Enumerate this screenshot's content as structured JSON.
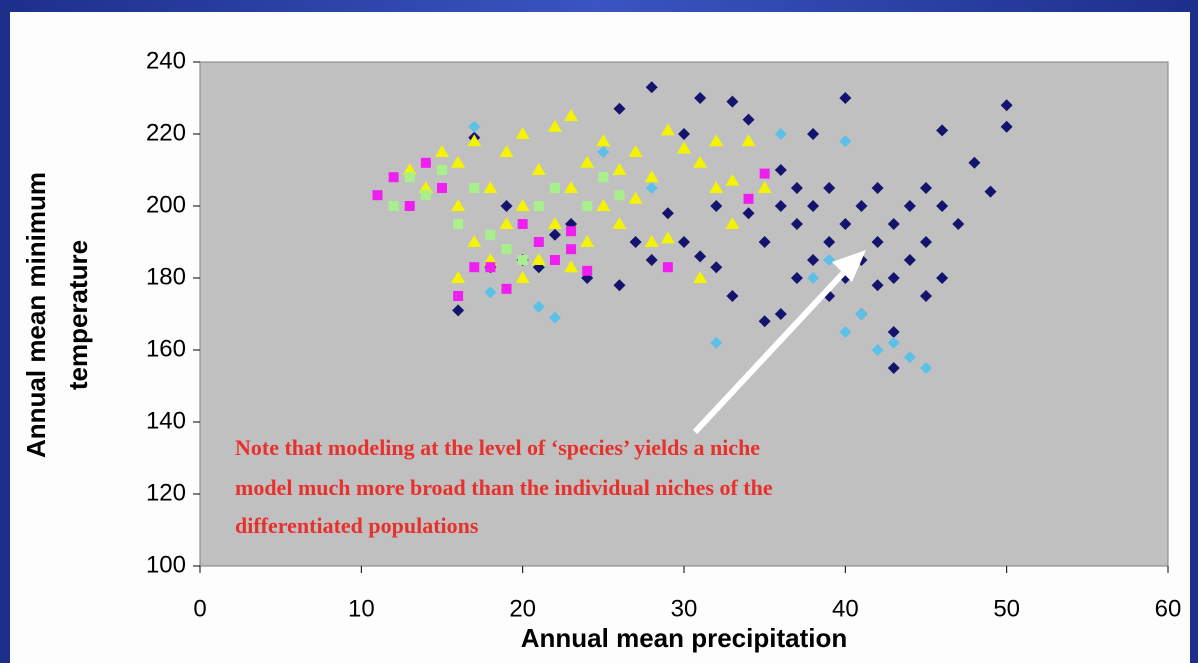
{
  "chart_data": {
    "type": "scatter",
    "x_label": "Annual mean precipitation",
    "y_label": [
      "Annual mean minimum",
      "temperature"
    ],
    "annotation": [
      "Note that modeling at the level of ‘species’ yields a niche",
      "model much more broad than the individual niches of the",
      "differentiated populations"
    ],
    "xlim": [
      0,
      60
    ],
    "xticks": [
      0,
      10,
      20,
      30,
      40,
      50,
      60
    ],
    "ylim": [
      100,
      240
    ],
    "yticks": [
      100,
      120,
      140,
      160,
      180,
      200,
      220,
      240
    ],
    "series": [
      {
        "color": "#14146e",
        "marker": "diamond",
        "x": [
          16,
          18,
          20,
          21,
          22,
          24,
          26,
          27,
          28,
          29,
          30,
          30,
          31,
          31,
          32,
          32,
          33,
          33,
          34,
          34,
          35,
          35,
          36,
          36,
          36,
          37,
          37,
          37,
          38,
          38,
          38,
          39,
          39,
          39,
          40,
          40,
          40,
          41,
          41,
          41,
          42,
          42,
          42,
          43,
          43,
          43,
          44,
          44,
          45,
          45,
          45,
          46,
          46,
          46,
          47,
          48,
          49,
          50,
          50,
          43,
          28,
          26,
          23,
          19,
          17
        ],
        "values": [
          171,
          183,
          185,
          183,
          192,
          180,
          178,
          190,
          185,
          198,
          190,
          220,
          186,
          230,
          183,
          200,
          175,
          229,
          198,
          224,
          168,
          190,
          170,
          200,
          210,
          180,
          195,
          205,
          185,
          200,
          220,
          175,
          190,
          205,
          180,
          195,
          230,
          170,
          185,
          200,
          178,
          190,
          205,
          165,
          180,
          195,
          185,
          200,
          175,
          190,
          205,
          180,
          200,
          221,
          195,
          212,
          204,
          228,
          222,
          155,
          233,
          227,
          195,
          200,
          219
        ]
      },
      {
        "color": "#5cc0e8",
        "marker": "diamond",
        "x": [
          21,
          22,
          32,
          40,
          41,
          42,
          43,
          44,
          45,
          38,
          39,
          36,
          40,
          17,
          25,
          28,
          18
        ],
        "values": [
          172,
          169,
          162,
          165,
          170,
          160,
          162,
          158,
          155,
          180,
          185,
          220,
          218,
          222,
          215,
          205,
          176
        ]
      },
      {
        "color": "#f4f400",
        "marker": "triangle",
        "x": [
          13,
          14,
          15,
          16,
          16,
          17,
          17,
          18,
          18,
          19,
          19,
          20,
          20,
          21,
          21,
          22,
          22,
          23,
          23,
          23,
          24,
          24,
          25,
          25,
          26,
          26,
          27,
          27,
          28,
          28,
          29,
          29,
          30,
          31,
          31,
          32,
          32,
          33,
          33,
          34,
          35,
          16,
          20
        ],
        "values": [
          210,
          205,
          215,
          212,
          200,
          218,
          190,
          205,
          185,
          195,
          215,
          220,
          200,
          210,
          185,
          222,
          195,
          225,
          205,
          183,
          212,
          190,
          218,
          200,
          210,
          195,
          215,
          202,
          208,
          190,
          221,
          191,
          216,
          212,
          180,
          205,
          218,
          195,
          207,
          218,
          205,
          180,
          180
        ]
      },
      {
        "color": "#f01ef0",
        "marker": "square",
        "x": [
          11,
          12,
          13,
          14,
          15,
          16,
          17,
          18,
          19,
          20,
          21,
          22,
          23,
          23,
          24,
          29,
          34,
          35
        ],
        "values": [
          203,
          208,
          200,
          212,
          205,
          175,
          183,
          183,
          177,
          195,
          190,
          185,
          193,
          188,
          182,
          183,
          202,
          209
        ]
      },
      {
        "color": "#a8f08c",
        "marker": "square",
        "x": [
          12,
          13,
          14,
          15,
          16,
          17,
          18,
          19,
          20,
          21,
          22,
          24,
          25,
          26
        ],
        "values": [
          200,
          208,
          203,
          210,
          195,
          205,
          192,
          188,
          185,
          200,
          205,
          200,
          208,
          203
        ]
      }
    ]
  }
}
